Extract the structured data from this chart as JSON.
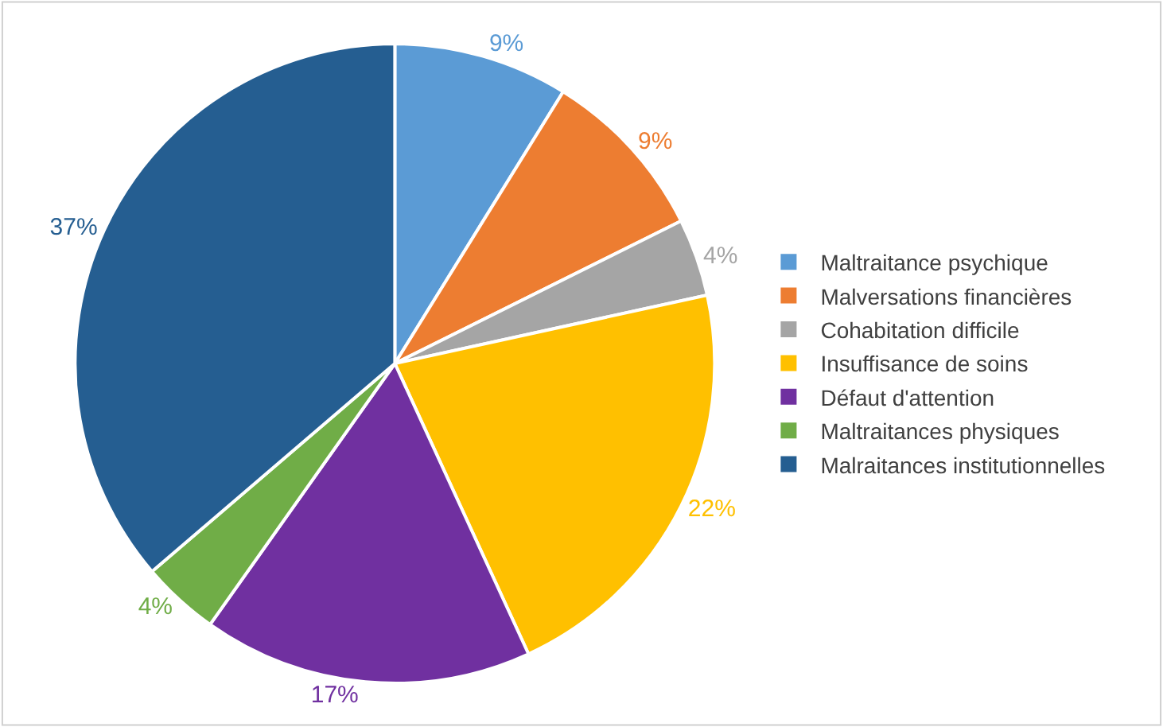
{
  "chart_data": {
    "type": "pie",
    "categories": [
      "Maltraitance psychique",
      "Malversations financières",
      "Cohabitation difficile",
      "Insuffisance de soins",
      "Défaut d'attention",
      "Maltraitances physiques",
      "Malraitances institutionnelles"
    ],
    "values": [
      9,
      9,
      4,
      22,
      17,
      4,
      37
    ],
    "value_labels": [
      "9%",
      "9%",
      "4%",
      "22%",
      "17%",
      "4%",
      "37%"
    ],
    "colors": [
      "#5b9bd5",
      "#ed7d31",
      "#a5a5a5",
      "#ffc000",
      "#7030a0",
      "#70ad47",
      "#255e91"
    ],
    "legend": "right"
  }
}
